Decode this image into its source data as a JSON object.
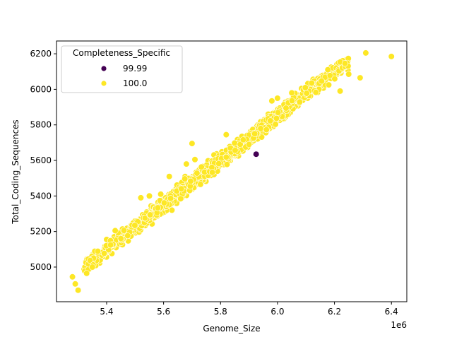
{
  "chart_data": {
    "type": "scatter",
    "title": "",
    "xlabel": "Genome_Size",
    "ylabel": "Total_Coding_Sequences",
    "x_offset_label": "1e6",
    "xlim": [
      5224000,
      6454000
    ],
    "ylim": [
      4805,
      6272
    ],
    "x_ticks": [
      5400000,
      5600000,
      5800000,
      6000000,
      6200000,
      6400000
    ],
    "x_tick_labels": [
      "5.4",
      "5.6",
      "5.8",
      "6.0",
      "6.2",
      "6.4"
    ],
    "y_ticks": [
      5000,
      5200,
      5400,
      5600,
      5800,
      6000,
      6200
    ],
    "y_tick_labels": [
      "5000",
      "5200",
      "5400",
      "5600",
      "5800",
      "6000",
      "6200"
    ],
    "grid": false,
    "legend": {
      "title": "Completeness_Specific",
      "position": "upper left",
      "entries": [
        {
          "label": "99.99",
          "color": "#440154"
        },
        {
          "label": "100.0",
          "color": "#fde725"
        }
      ]
    },
    "series": [
      {
        "name": "100.0",
        "color": "#fde725",
        "trend": {
          "slope_per_mb": 1250,
          "intercept_at_5_3mb": 4975,
          "x_min": 5300000,
          "x_max": 6280000,
          "y_spread_sd": 38,
          "n_points": 1400
        },
        "points": [
          [
            5280000,
            4945
          ],
          [
            5290000,
            4905
          ],
          [
            5300000,
            4870
          ],
          [
            5330000,
            4965
          ],
          [
            5350000,
            5000
          ],
          [
            5430000,
            5205
          ],
          [
            5520000,
            5390
          ],
          [
            5550000,
            5400
          ],
          [
            5590000,
            5410
          ],
          [
            5620000,
            5510
          ],
          [
            5700000,
            5695
          ],
          [
            5710000,
            5605
          ],
          [
            5680000,
            5580
          ],
          [
            5820000,
            5745
          ],
          [
            5900000,
            5690
          ],
          [
            5920000,
            5750
          ],
          [
            5980000,
            5935
          ],
          [
            6000000,
            5950
          ],
          [
            6050000,
            5980
          ],
          [
            6120000,
            6035
          ],
          [
            6180000,
            6025
          ],
          [
            6220000,
            5990
          ],
          [
            6250000,
            6085
          ],
          [
            6290000,
            6065
          ],
          [
            6310000,
            6205
          ],
          [
            6400000,
            6185
          ]
        ]
      },
      {
        "name": "99.99",
        "color": "#440154",
        "points": [
          [
            5925000,
            5635
          ]
        ]
      }
    ]
  }
}
